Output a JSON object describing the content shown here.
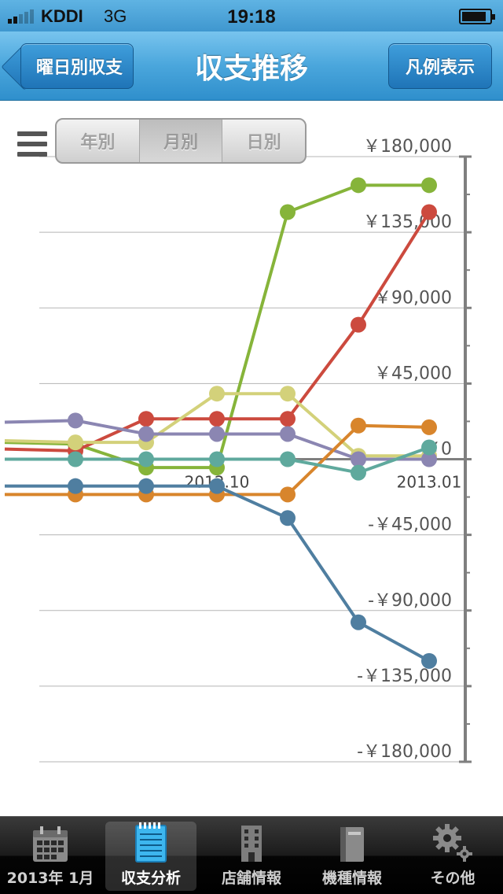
{
  "status_bar": {
    "carrier": "KDDI",
    "network": "3G",
    "time": "19:18"
  },
  "nav": {
    "back_label": "曜日別収支",
    "title": "収支推移",
    "legend_label": "凡例表示"
  },
  "segmented": {
    "options": [
      "年別",
      "月別",
      "日別"
    ],
    "selected": "月別"
  },
  "chart_data": {
    "type": "line",
    "x_labels": [
      "2012.10",
      "2013.01"
    ],
    "ylim": [
      -180000,
      180000
    ],
    "y_ticks": [
      180000,
      135000,
      90000,
      45000,
      0,
      -45000,
      -90000,
      -135000,
      -180000
    ],
    "y_tick_labels": [
      "￥180,000",
      "￥135,000",
      "￥90,000",
      "￥45,000",
      "￥0",
      "-￥45,000",
      "-￥90,000",
      "-￥135,000",
      "-￥180,000"
    ],
    "grid": true,
    "axis_position": "right",
    "series": [
      {
        "color": "#86b43a",
        "values": [
          10000,
          9000,
          -5000,
          -5000,
          147000,
          163000,
          163000
        ]
      },
      {
        "color": "#cc4a3e",
        "values": [
          6000,
          5000,
          24000,
          24000,
          24000,
          80000,
          147000
        ]
      },
      {
        "color": "#d3d17a",
        "values": [
          11000,
          10000,
          10000,
          39000,
          39000,
          2000,
          2000
        ]
      },
      {
        "color": "#8b86b2",
        "values": [
          22000,
          23000,
          15000,
          15000,
          15000,
          0,
          0
        ]
      },
      {
        "color": "#d8852c",
        "values": [
          -21000,
          -21000,
          -21000,
          -21000,
          -21000,
          20000,
          19000
        ]
      },
      {
        "color": "#5fa99d",
        "values": [
          0,
          0,
          0,
          0,
          0,
          -8000,
          7000
        ]
      },
      {
        "color": "#4f7ea0",
        "values": [
          -16000,
          -16000,
          -16000,
          -16000,
          -35000,
          -97000,
          -120000
        ]
      }
    ]
  },
  "tabs": [
    {
      "label": "2013年 1月",
      "icon": "calendar-icon",
      "active": false
    },
    {
      "label": "収支分析",
      "icon": "notepad-icon",
      "active": true
    },
    {
      "label": "店舗情報",
      "icon": "building-icon",
      "active": false
    },
    {
      "label": "機種情報",
      "icon": "book-icon",
      "active": false
    },
    {
      "label": "その他",
      "icon": "gear-icon",
      "active": false
    }
  ]
}
